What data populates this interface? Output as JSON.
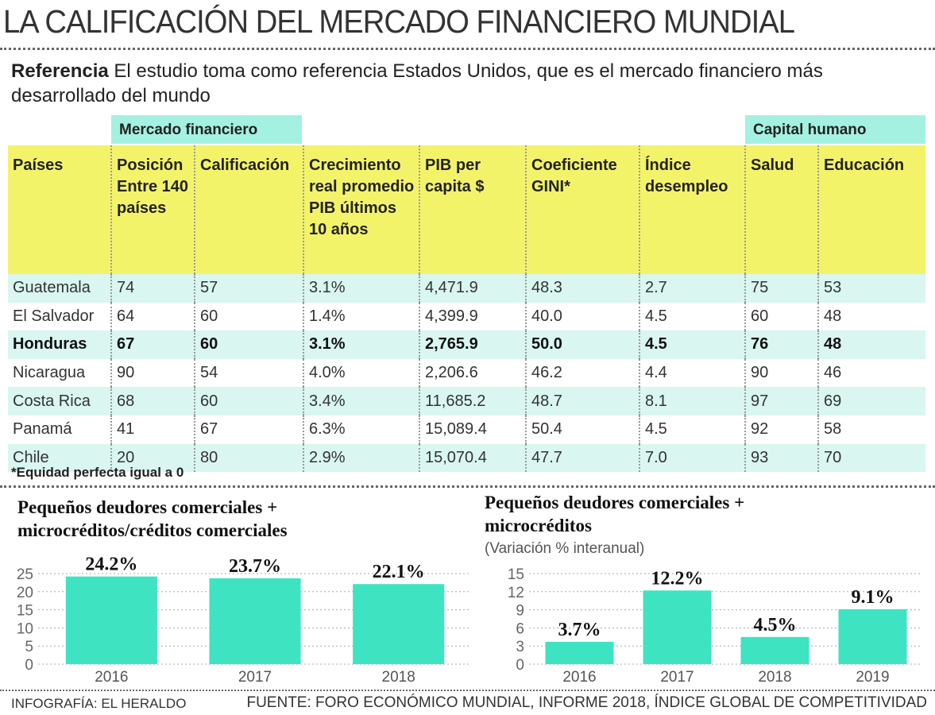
{
  "header": {
    "title": "LA CALIFICACIÓN DEL MERCADO FINANCIERO MUNDIAL",
    "reference_label": "Referencia",
    "reference_text": "El estudio toma como referencia Estados Unidos, que es el mercado financiero más desarrollado del  mundo"
  },
  "table": {
    "group_headers": [
      "Mercado financiero",
      "Capital humano"
    ],
    "headers": [
      "Países",
      "Posición Entre 140 países",
      "Calificación",
      "Crecimiento real promedio PIB últimos 10 años",
      "PIB per capita $",
      "Coeficiente GINI*",
      "Índice desempleo",
      "Salud",
      "Educación"
    ],
    "rows": [
      [
        "Guatemala",
        "74",
        "57",
        "3.1%",
        "4,471.9",
        "48.3",
        "2.7",
        "75",
        "53"
      ],
      [
        "El Salvador",
        "64",
        "60",
        "1.4%",
        "4,399.9",
        "40.0",
        "4.5",
        "60",
        "48"
      ],
      [
        "Honduras",
        "67",
        "60",
        "3.1%",
        "2,765.9",
        "50.0",
        "4.5",
        "76",
        "48"
      ],
      [
        "Nicaragua",
        "90",
        "54",
        "4.0%",
        "2,206.6",
        "46.2",
        "4.4",
        "90",
        "46"
      ],
      [
        "Costa Rica",
        "68",
        "60",
        "3.4%",
        "11,685.2",
        "48.7",
        "8.1",
        "97",
        "69"
      ],
      [
        "Panamá",
        "41",
        "67",
        "6.3%",
        "15,089.4",
        "50.4",
        "4.5",
        "92",
        "58"
      ],
      [
        "Chile",
        "20",
        "80",
        "2.9%",
        "15,070.4",
        "47.7",
        "7.0",
        "93",
        "70"
      ]
    ],
    "footnote": "*Equidad perfecta igual a 0"
  },
  "chart_data": [
    {
      "type": "bar",
      "title": "Pequeños deudores comerciales + microcréditos/créditos comerciales",
      "categories": [
        "2016",
        "2017",
        "2018"
      ],
      "values": [
        24.2,
        23.7,
        22.1
      ],
      "value_labels": [
        "24.2%",
        "23.7%",
        "22.1%"
      ],
      "color": "#3ee3c2",
      "ylim": [
        0,
        25
      ],
      "yticks": [
        0,
        5,
        10,
        15,
        20,
        25
      ],
      "grid": true
    },
    {
      "type": "bar",
      "title": "Pequeños deudores comerciales + microcréditos",
      "subtitle": "(Variación % interanual)",
      "categories": [
        "2016",
        "2017",
        "2018",
        "2019"
      ],
      "values": [
        3.7,
        12.2,
        4.5,
        9.1
      ],
      "value_labels": [
        "3.7%",
        "12.2%",
        "4.5%",
        "9.1%"
      ],
      "color": "#3ee3c2",
      "ylim": [
        0,
        15
      ],
      "yticks": [
        0,
        3,
        6,
        9,
        12,
        15
      ],
      "grid": true
    }
  ],
  "footer": {
    "credit": "INFOGRAFÍA: EL HERALDO",
    "source": "FUENTE: FORO ECONÓMICO MUNDIAL, INFORME 2018, ÍNDICE GLOBAL DE COMPETITIVIDAD"
  }
}
